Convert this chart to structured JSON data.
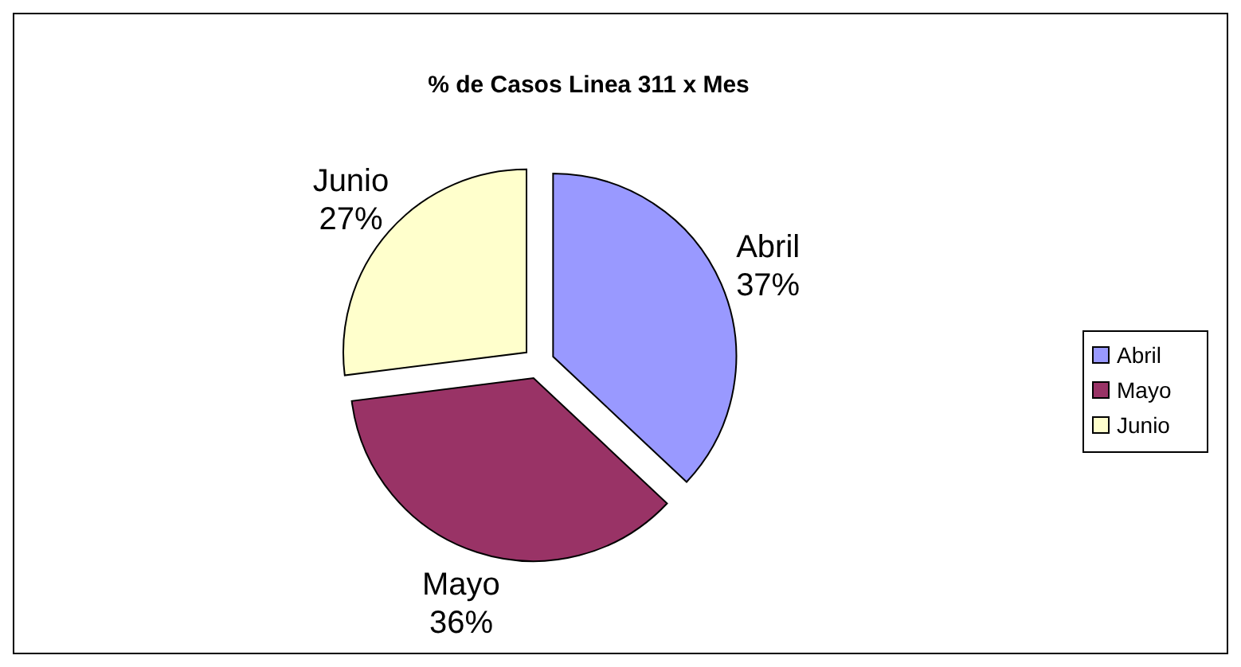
{
  "chart_data": {
    "type": "pie",
    "title": "% de Casos Linea 311 x Mes",
    "categories": [
      "Abril",
      "Mayo",
      "Junio"
    ],
    "values": [
      37,
      36,
      27
    ],
    "value_labels": [
      "37%",
      "36%",
      "27%"
    ],
    "colors": [
      "#9999ff",
      "#993366",
      "#ffffcc"
    ],
    "legend": "right"
  }
}
